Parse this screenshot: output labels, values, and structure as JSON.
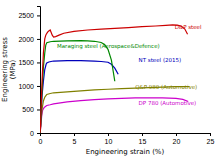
{
  "chart_data": {
    "type": "line",
    "xlabel": "Engineering strain (%)",
    "ylabel": "Engineering stress\n(MPa)",
    "xlim": [
      0,
      25
    ],
    "ylim": [
      0,
      2700
    ],
    "xticks": [
      0,
      5,
      10,
      15,
      20,
      25
    ],
    "yticks": [
      0,
      500,
      1000,
      1500,
      2000,
      2500
    ],
    "grid": false,
    "series": [
      {
        "color": "#cc00cc",
        "x": [
          0,
          0.08,
          0.15,
          0.25,
          0.4,
          0.6,
          0.8,
          1.0,
          1.5,
          2,
          4,
          6,
          8,
          10,
          12,
          14,
          16,
          18,
          20,
          21,
          21.8
        ],
        "values": [
          0,
          80,
          200,
          370,
          490,
          540,
          565,
          585,
          600,
          620,
          660,
          690,
          710,
          725,
          735,
          745,
          748,
          745,
          735,
          715,
          670
        ]
      },
      {
        "color": "#808000",
        "x": [
          0,
          0.08,
          0.15,
          0.3,
          0.5,
          0.7,
          0.9,
          1.0,
          1.5,
          2,
          4,
          6,
          8,
          10,
          12,
          14,
          16,
          18,
          20,
          21,
          22
        ],
        "values": [
          0,
          100,
          250,
          500,
          680,
          760,
          800,
          820,
          840,
          855,
          875,
          895,
          915,
          930,
          945,
          955,
          965,
          975,
          985,
          988,
          985
        ]
      },
      {
        "color": "#0000bb",
        "x": [
          0,
          0.08,
          0.15,
          0.3,
          0.5,
          0.7,
          0.9,
          1.0,
          1.3,
          1.8,
          2,
          4,
          6,
          8,
          9,
          10,
          10.5,
          11,
          11.5
        ],
        "values": [
          0,
          150,
          400,
          800,
          1100,
          1350,
          1460,
          1490,
          1510,
          1525,
          1530,
          1540,
          1538,
          1530,
          1520,
          1505,
          1460,
          1380,
          1250
        ]
      },
      {
        "color": "#008800",
        "x": [
          0,
          0.08,
          0.15,
          0.3,
          0.5,
          0.7,
          0.85,
          1.0,
          1.5,
          2,
          4,
          6,
          7,
          8,
          9,
          9.5,
          10,
          10.5,
          11
        ],
        "values": [
          0,
          150,
          450,
          900,
          1400,
          1700,
          1870,
          1920,
          1940,
          1950,
          1960,
          1965,
          1960,
          1950,
          1925,
          1880,
          1780,
          1550,
          1100
        ]
      },
      {
        "color": "#cc0000",
        "x": [
          0,
          0.08,
          0.15,
          0.3,
          0.5,
          0.7,
          0.85,
          1.0,
          1.2,
          1.5,
          1.8,
          2.0,
          2.3,
          2.8,
          3.5,
          5,
          7,
          9,
          11,
          13,
          15,
          17,
          18.5,
          19.5,
          20.2,
          20.8,
          21.3,
          21.7
        ],
        "values": [
          0,
          150,
          500,
          1100,
          1700,
          2000,
          2080,
          2120,
          2160,
          2190,
          2080,
          2040,
          2050,
          2080,
          2120,
          2160,
          2190,
          2210,
          2225,
          2240,
          2260,
          2275,
          2290,
          2300,
          2295,
          2270,
          2210,
          2100
        ]
      }
    ],
    "annotations": [
      {
        "text": "DP 780 (Automotive)",
        "x": 14.5,
        "y": 640,
        "color": "#cc00cc"
      },
      {
        "text": "Q&P 980 (Automotive)",
        "x": 14.0,
        "y": 970,
        "color": "#808000"
      },
      {
        "text": "NT steel (2015)",
        "x": 14.5,
        "y": 1560,
        "color": "#0000bb"
      },
      {
        "text": "Maraging steel (Aerospace&Defence)",
        "x": 2.5,
        "y": 1840,
        "color": "#008800"
      },
      {
        "text": "D&P steel",
        "x": 19.8,
        "y": 2260,
        "color": "#cc0000"
      }
    ]
  }
}
